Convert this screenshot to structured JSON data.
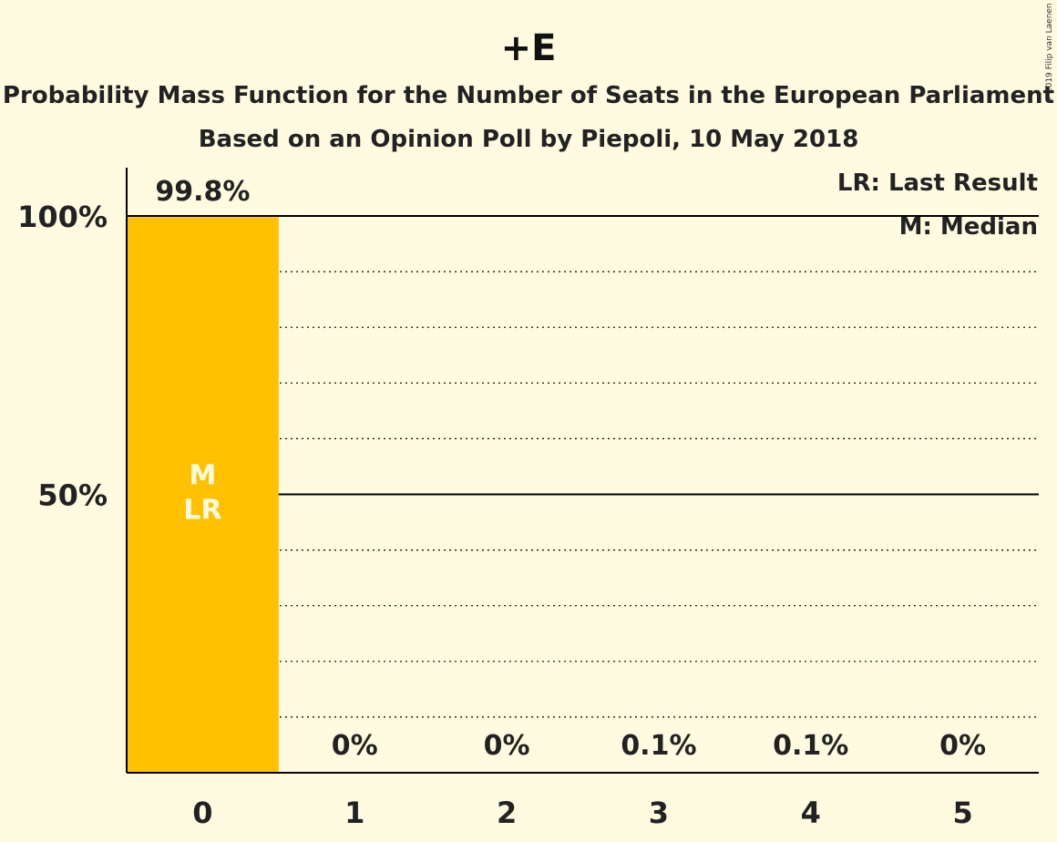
{
  "chart_data": {
    "type": "bar",
    "title": "+E",
    "subtitle": "Probability Mass Function for the Number of Seats in the European Parliament",
    "subtitle2": "Based on an Opinion Poll by Piepoli, 10 May 2018",
    "categories": [
      "0",
      "1",
      "2",
      "3",
      "4",
      "5"
    ],
    "values": [
      99.8,
      0,
      0,
      0.1,
      0.1,
      0
    ],
    "value_labels": [
      "99.8%",
      "0%",
      "0%",
      "0.1%",
      "0.1%",
      "0%"
    ],
    "ylim": [
      0,
      100
    ],
    "yticks": [
      {
        "value": 50,
        "label": "50%"
      },
      {
        "value": 100,
        "label": "100%"
      }
    ],
    "minor_gridlines": [
      10,
      20,
      30,
      40,
      60,
      70,
      80,
      90
    ],
    "bar_color": "#ffc000",
    "in_bar_labels": [
      "M",
      "LR"
    ],
    "legend": {
      "placement": "top-right",
      "lines": [
        "LR: Last Result",
        "M: Median"
      ]
    },
    "grid": true
  },
  "copyright": "© 2019 Filip van Laenen"
}
